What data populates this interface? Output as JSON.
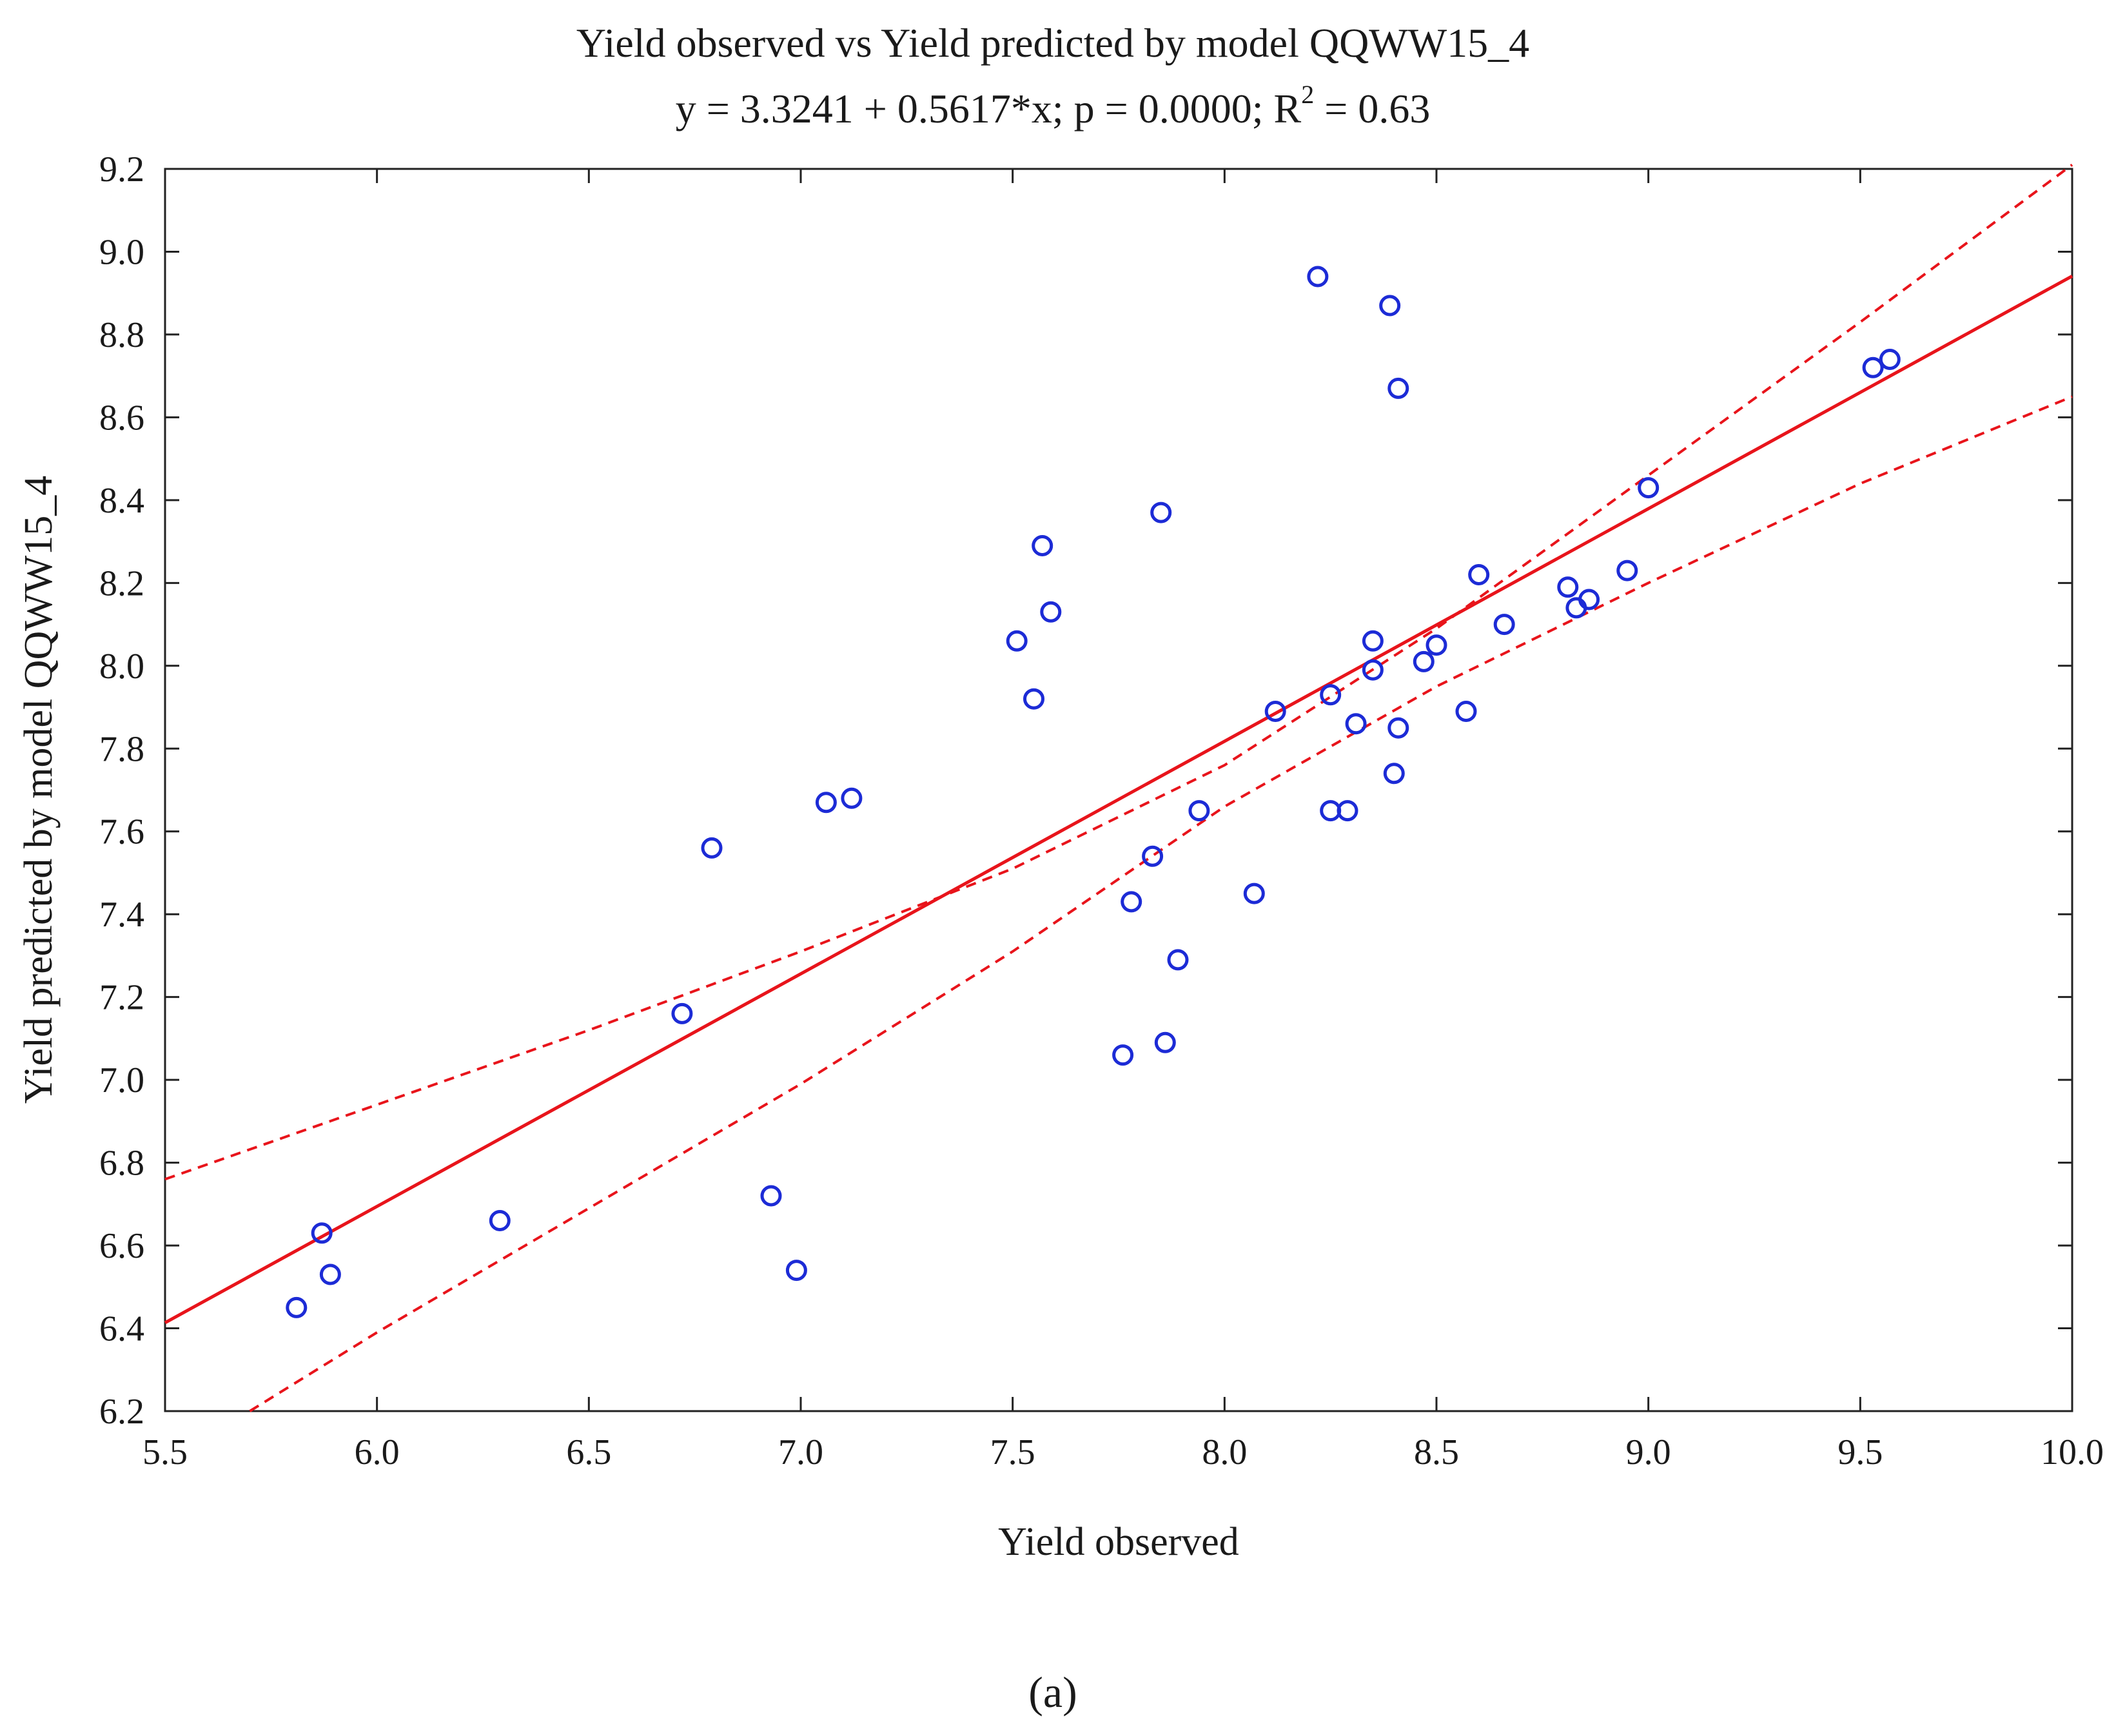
{
  "chart_data": {
    "type": "scatter",
    "title": "Yield observed vs Yield predicted by model QQWW15_4",
    "subtitle_parts": {
      "before_sup": "y = 3.3241 + 0.5617*x; p = 0.0000; R",
      "sup": "2",
      "after_sup": " = 0.63"
    },
    "xlabel": "Yield observed",
    "ylabel": "Yield predicted by model QQWW15_4",
    "xlim": [
      5.5,
      10.0
    ],
    "ylim": [
      6.2,
      9.2
    ],
    "xticks": [
      "5.5",
      "6.0",
      "6.5",
      "7.0",
      "7.5",
      "8.0",
      "8.5",
      "9.0",
      "9.5",
      "10.0"
    ],
    "yticks": [
      "6.2",
      "6.4",
      "6.6",
      "6.8",
      "7.0",
      "7.2",
      "7.4",
      "7.6",
      "7.8",
      "8.0",
      "8.2",
      "8.4",
      "8.6",
      "8.8",
      "9.0",
      "9.2"
    ],
    "regression": {
      "intercept": 3.3241,
      "slope": 0.5617,
      "color": "#e8141b"
    },
    "confidence_band": {
      "color": "#e8141b",
      "upper": [
        [
          5.5,
          6.76
        ],
        [
          6.0,
          6.94
        ],
        [
          6.5,
          7.12
        ],
        [
          7.0,
          7.31
        ],
        [
          7.5,
          7.51
        ],
        [
          8.0,
          7.76
        ],
        [
          8.5,
          8.09
        ],
        [
          9.0,
          8.46
        ],
        [
          9.5,
          8.83
        ],
        [
          10.0,
          9.21
        ]
      ],
      "lower": [
        [
          5.7,
          6.2
        ],
        [
          6.0,
          6.39
        ],
        [
          6.5,
          6.69
        ],
        [
          7.0,
          6.99
        ],
        [
          7.5,
          7.31
        ],
        [
          8.0,
          7.66
        ],
        [
          8.5,
          7.95
        ],
        [
          9.0,
          8.2
        ],
        [
          9.5,
          8.44
        ],
        [
          10.0,
          8.65
        ]
      ]
    },
    "marker_color": "#1c2bd6",
    "points": [
      [
        5.81,
        6.45
      ],
      [
        5.87,
        6.63
      ],
      [
        5.89,
        6.53
      ],
      [
        6.29,
        6.66
      ],
      [
        6.72,
        7.16
      ],
      [
        6.79,
        7.56
      ],
      [
        6.93,
        6.72
      ],
      [
        6.99,
        6.54
      ],
      [
        7.06,
        7.67
      ],
      [
        7.12,
        7.68
      ],
      [
        7.51,
        8.06
      ],
      [
        7.55,
        7.92
      ],
      [
        7.57,
        8.29
      ],
      [
        7.59,
        8.13
      ],
      [
        7.76,
        7.06
      ],
      [
        7.78,
        7.43
      ],
      [
        7.83,
        7.54
      ],
      [
        7.85,
        8.37
      ],
      [
        7.86,
        7.09
      ],
      [
        7.89,
        7.29
      ],
      [
        7.94,
        7.65
      ],
      [
        8.07,
        7.45
      ],
      [
        8.12,
        7.89
      ],
      [
        8.22,
        8.94
      ],
      [
        8.25,
        7.65
      ],
      [
        8.25,
        7.93
      ],
      [
        8.29,
        7.65
      ],
      [
        8.31,
        7.86
      ],
      [
        8.35,
        7.99
      ],
      [
        8.35,
        8.06
      ],
      [
        8.39,
        8.87
      ],
      [
        8.4,
        7.74
      ],
      [
        8.41,
        8.67
      ],
      [
        8.41,
        7.85
      ],
      [
        8.47,
        8.01
      ],
      [
        8.5,
        8.05
      ],
      [
        8.57,
        7.89
      ],
      [
        8.6,
        8.22
      ],
      [
        8.66,
        8.1
      ],
      [
        8.81,
        8.19
      ],
      [
        8.83,
        8.14
      ],
      [
        8.86,
        8.16
      ],
      [
        8.95,
        8.23
      ],
      [
        9.0,
        8.43
      ],
      [
        9.53,
        8.72
      ],
      [
        9.57,
        8.74
      ]
    ]
  },
  "caption": "(a)"
}
